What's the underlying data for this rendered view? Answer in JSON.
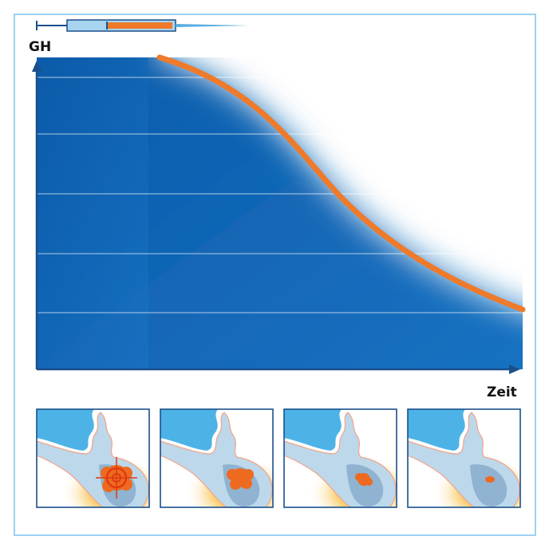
{
  "axes": {
    "y_label": "GH",
    "x_label": "Zeit"
  }
}
